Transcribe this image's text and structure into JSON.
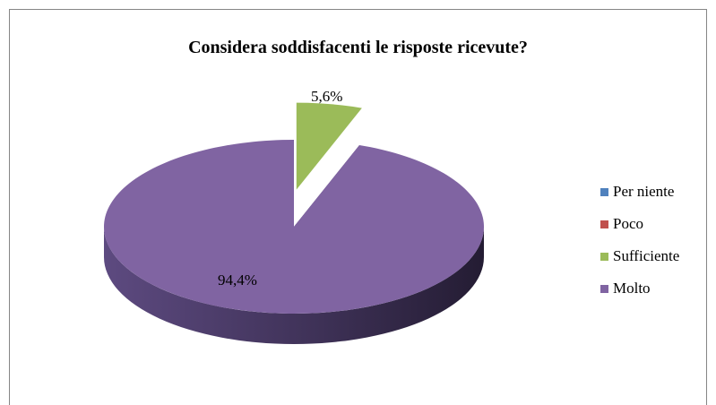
{
  "chart_data": {
    "type": "pie",
    "title": "Considera soddisfacenti le risposte ricevute?",
    "categories": [
      "Per niente",
      "Poco",
      "Sufficiente",
      "Molto"
    ],
    "values": [
      0,
      0,
      5.6,
      94.4
    ],
    "data_labels": [
      "",
      "",
      "5,6%",
      "94,4%"
    ],
    "colors": [
      "#4F81BD",
      "#C0504D",
      "#9BBB59",
      "#8064A2"
    ],
    "side_colors": [
      "#3A6290",
      "#8F3B39",
      "#6F8A3E",
      "#4A3A66"
    ],
    "legend_position": "right",
    "exploded": "Sufficiente",
    "style": "3d"
  }
}
